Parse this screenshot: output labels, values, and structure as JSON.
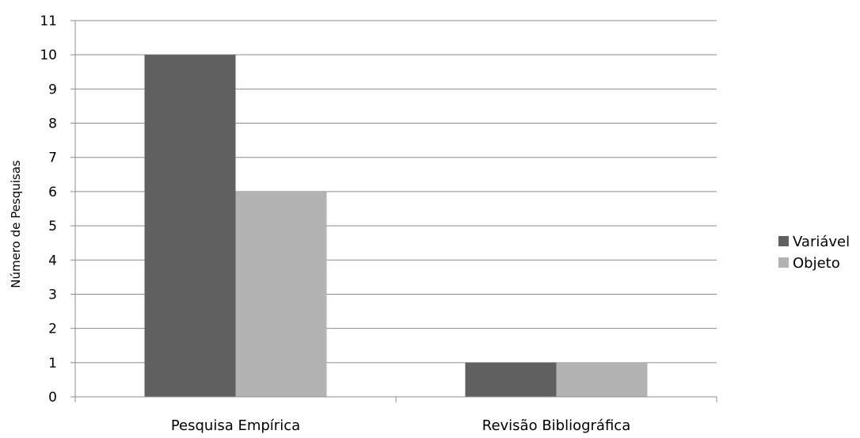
{
  "chart_data": {
    "type": "bar",
    "title": "",
    "xlabel": "",
    "ylabel": "Número de Pesquisas",
    "categories": [
      "Pesquisa Empírica",
      "Revisão Bibliográfica"
    ],
    "series": [
      {
        "name": "Variável",
        "values": [
          10,
          1
        ],
        "color": "#606060"
      },
      {
        "name": "Objeto",
        "values": [
          6,
          1
        ],
        "color": "#b3b3b3"
      }
    ],
    "ylim": [
      0,
      11
    ],
    "yticks": [
      0,
      1,
      2,
      3,
      4,
      5,
      6,
      7,
      8,
      9,
      10,
      11
    ],
    "grid": true,
    "legend_position": "right"
  }
}
